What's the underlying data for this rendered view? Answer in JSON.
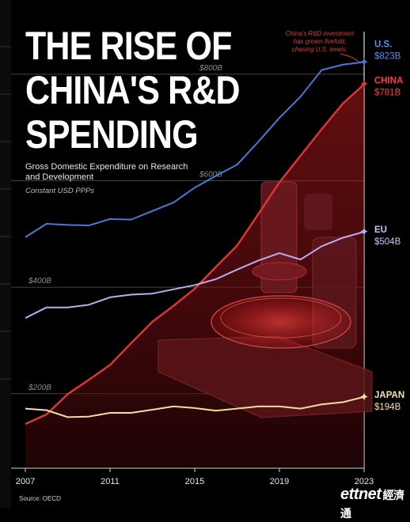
{
  "header": {
    "title_lines": [
      "THE RISE OF",
      "CHINA'S R&D",
      "SPENDING"
    ],
    "subtitle": "Gross Domestic Expenditure on Research and Development",
    "measure": "Constant USD PPPs"
  },
  "footer": {
    "source": "Source: OECD"
  },
  "watermark": {
    "latin": "ettnet",
    "cn": "經濟通"
  },
  "colors": {
    "background": "#000000",
    "china_red": "#e23636",
    "us_blue": "#4a78d8",
    "eu_purple": "#b7aef0",
    "japan_yellow": "#f4dca0",
    "grid": "#5a5a5a"
  },
  "annotation": {
    "text": "China's R&D investment has grown fivefold, chasing U.S. levels."
  },
  "chart_data": {
    "type": "line",
    "title": "THE RISE OF CHINA'S R&D SPENDING",
    "subtitle": "Gross Domestic Expenditure on Research and Development",
    "x_tick_labels": [
      "2007",
      "2011",
      "2015",
      "2019",
      "2023"
    ],
    "y_tick_labels": [
      "$200B",
      "$400B",
      "$600B",
      "$800B"
    ],
    "y_ticks": [
      200,
      400,
      600,
      800
    ],
    "xlim": [
      2007,
      2023
    ],
    "ylim": [
      60,
      880
    ],
    "grid": true,
    "x": [
      2007,
      2008,
      2009,
      2010,
      2011,
      2012,
      2013,
      2014,
      2015,
      2016,
      2017,
      2018,
      2019,
      2020,
      2021,
      2022,
      2023
    ],
    "series": [
      {
        "name": "U.S.",
        "color_key": "us_blue",
        "end_label": "$823B",
        "label_color": "#5d8cf0",
        "values": [
          494,
          519,
          517,
          516,
          528,
          527,
          543,
          559,
          587,
          609,
          630,
          673,
          718,
          758,
          808,
          818,
          823
        ]
      },
      {
        "name": "China",
        "color_key": "china_red",
        "end_label": "$781B",
        "label_color": "#ff3b3b",
        "values": [
          143,
          161,
          199,
          226,
          254,
          295,
          335,
          365,
          397,
          438,
          478,
          537,
          597,
          647,
          697,
          745,
          781
        ]
      },
      {
        "name": "EU",
        "color_key": "eu_purple",
        "end_label": "$504B",
        "label_color": "#c9c2ff",
        "values": [
          342,
          362,
          362,
          367,
          381,
          386,
          388,
          396,
          404,
          415,
          433,
          450,
          464,
          452,
          477,
          493,
          504
        ]
      },
      {
        "name": "Japan",
        "color_key": "japan_yellow",
        "end_label": "$194B",
        "label_color": "#f6e2a8",
        "values": [
          172,
          169,
          156,
          157,
          164,
          164,
          170,
          176,
          173,
          168,
          172,
          176,
          176,
          172,
          180,
          184,
          194
        ]
      }
    ]
  }
}
